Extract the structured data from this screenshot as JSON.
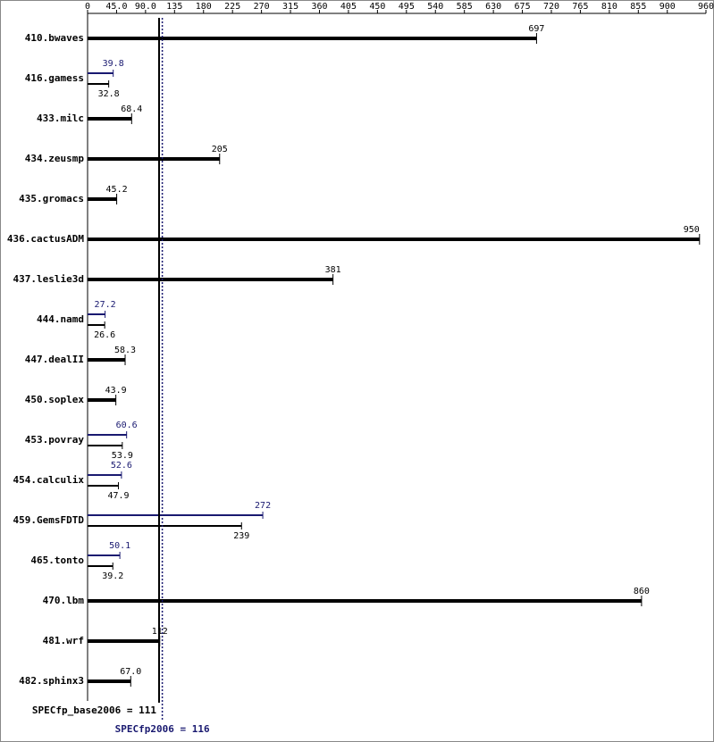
{
  "chart_data": {
    "type": "bar",
    "categories": [
      "410.bwaves",
      "416.gamess",
      "433.milc",
      "434.zeusmp",
      "435.gromacs",
      "436.cactusADM",
      "437.leslie3d",
      "444.namd",
      "447.dealII",
      "450.soplex",
      "453.povray",
      "454.calculix",
      "459.GemsFDTD",
      "465.tonto",
      "470.lbm",
      "481.wrf",
      "482.sphinx3"
    ],
    "series": [
      {
        "color": "#000000",
        "values": [
          697,
          32.8,
          68.4,
          205,
          45.2,
          950,
          381,
          26.6,
          58.3,
          43.9,
          53.9,
          47.9,
          239,
          39.2,
          860,
          112,
          67.0
        ],
        "value_labels": [
          "697",
          "32.8",
          "68.4",
          "205",
          "45.2",
          "950",
          "381",
          "26.6",
          "58.3",
          "43.9",
          "53.9",
          "47.9",
          "239",
          "39.2",
          "860",
          "112",
          "67.0"
        ]
      },
      {
        "color": "#191970",
        "values": [
          null,
          39.8,
          null,
          null,
          null,
          null,
          null,
          27.2,
          null,
          null,
          60.6,
          52.6,
          272,
          50.1,
          null,
          null,
          null
        ]
      }
    ],
    "xlim": [
      0,
      960
    ],
    "xticks": [
      0,
      {
        "value": 45,
        "label": "45.0"
      },
      {
        "value": 90,
        "label": "90.0"
      },
      135,
      180,
      225,
      270,
      315,
      360,
      405,
      450,
      495,
      540,
      585,
      630,
      675,
      720,
      765,
      810,
      855,
      900,
      960
    ],
    "reference_lines": [
      {
        "label": "SPECfp_base2006 = 111",
        "value": 111,
        "color": "#000000"
      },
      {
        "label": "SPECfp2006 = 116",
        "value": 116,
        "color": "#191970"
      }
    ]
  }
}
